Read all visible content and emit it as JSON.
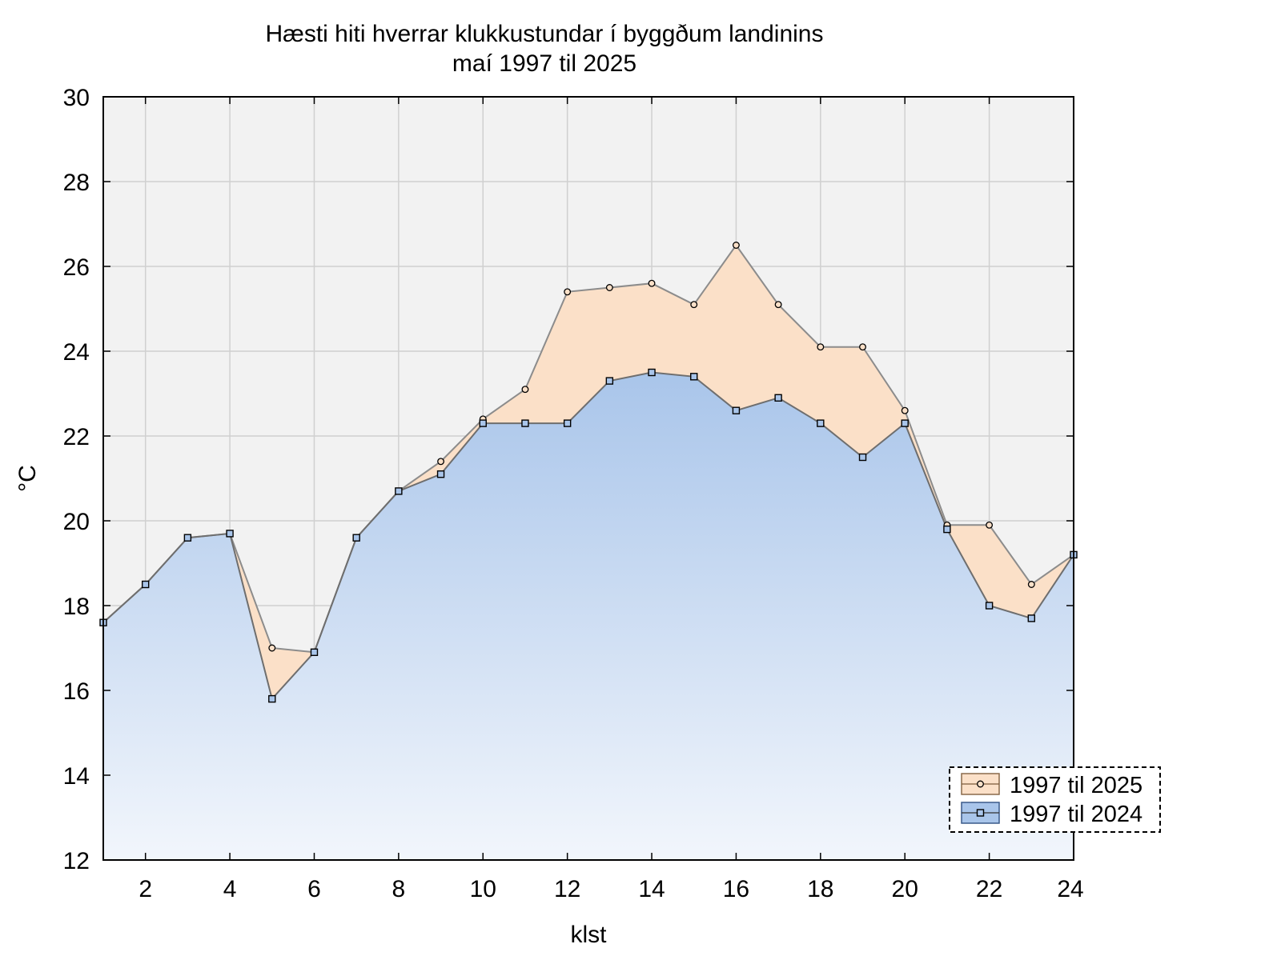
{
  "chart_data": {
    "type": "area",
    "title": "Hæsti hiti hverrar klukkustundar í byggðum landinins",
    "subtitle": "maí 1997 til 2025",
    "xlabel": "klst",
    "ylabel": "°C",
    "xlim": [
      1,
      24
    ],
    "ylim": [
      12,
      30
    ],
    "x_ticks": [
      2,
      4,
      6,
      8,
      10,
      12,
      14,
      16,
      18,
      20,
      22,
      24
    ],
    "y_ticks": [
      12,
      14,
      16,
      18,
      20,
      22,
      24,
      26,
      28,
      30
    ],
    "grid": true,
    "legend_position": "bottom-right",
    "x": [
      1,
      2,
      3,
      4,
      5,
      6,
      7,
      8,
      9,
      10,
      11,
      12,
      13,
      14,
      15,
      16,
      17,
      18,
      19,
      20,
      21,
      22,
      23,
      24
    ],
    "series": [
      {
        "name": "1997 til 2025",
        "marker": "circle",
        "color": "#fbe0c8",
        "values": [
          17.6,
          18.5,
          19.6,
          19.7,
          17.0,
          16.9,
          19.6,
          20.7,
          21.4,
          22.4,
          23.1,
          25.4,
          25.5,
          25.6,
          25.1,
          26.5,
          25.1,
          24.1,
          24.1,
          22.6,
          19.9,
          19.9,
          18.5,
          19.2
        ]
      },
      {
        "name": "1997 til 2024",
        "marker": "square",
        "color": "#a9c5ea",
        "values": [
          17.6,
          18.5,
          19.6,
          19.7,
          15.8,
          16.9,
          19.6,
          20.7,
          21.1,
          22.3,
          22.3,
          22.3,
          23.3,
          23.5,
          23.4,
          22.6,
          22.9,
          22.3,
          21.5,
          22.3,
          19.8,
          18.0,
          17.7,
          19.2
        ]
      }
    ]
  }
}
